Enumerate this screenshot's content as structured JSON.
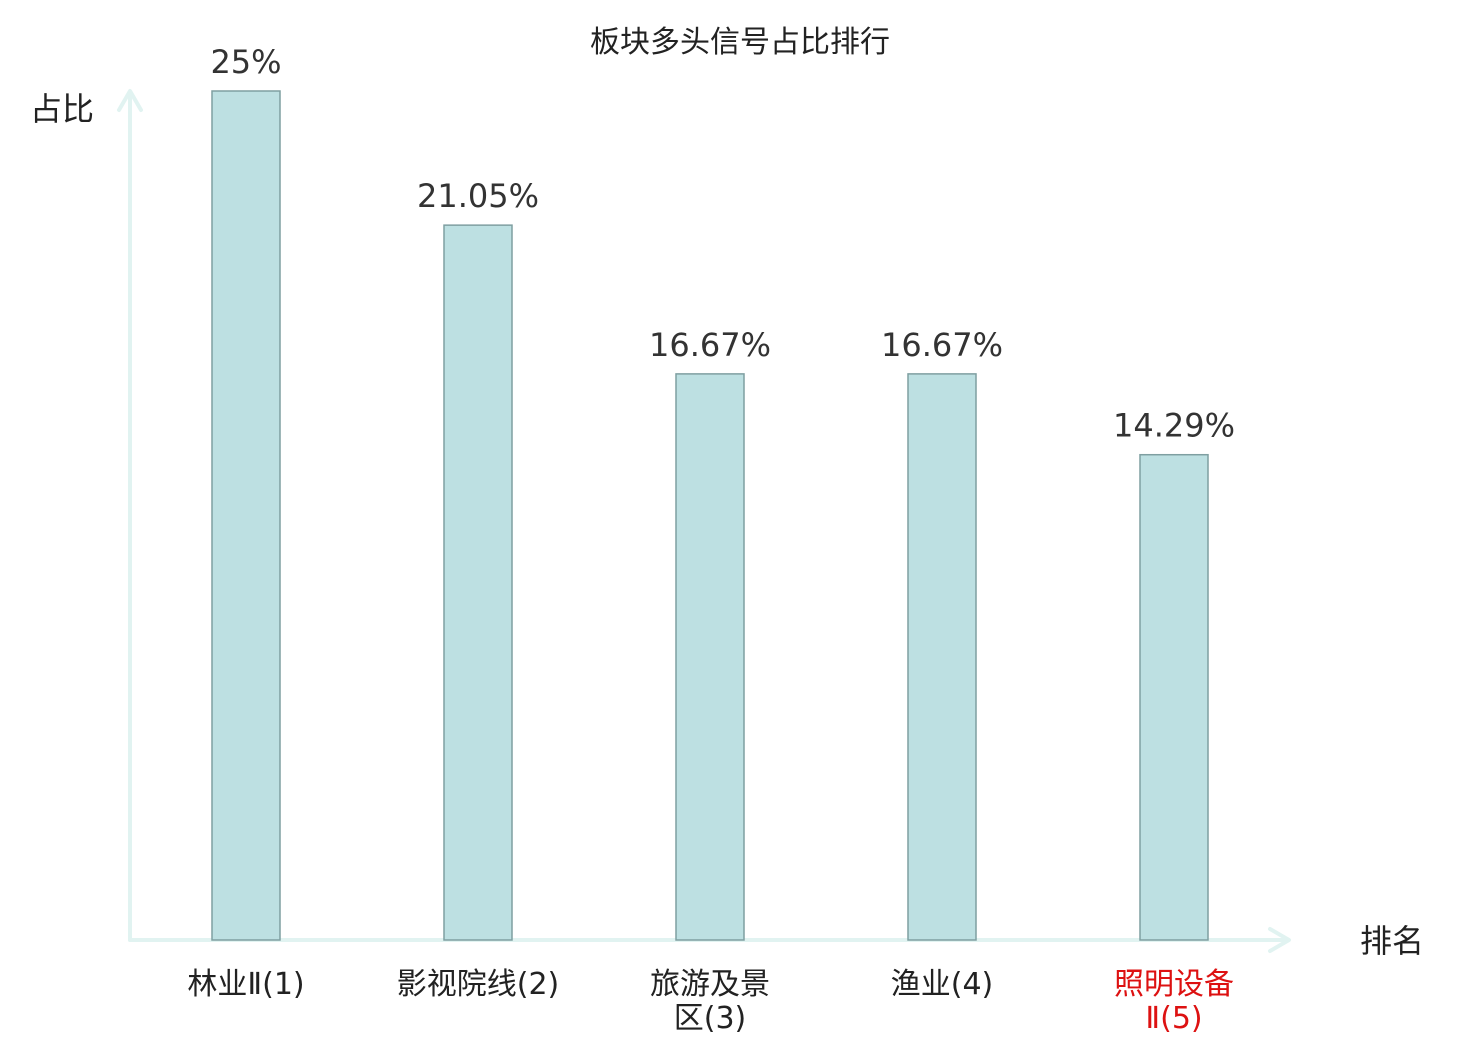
{
  "chart_data": {
    "type": "bar",
    "title": "板块多头信号占比排行",
    "ylabel": "占比",
    "xlabel": "排名",
    "ylim": [
      0,
      25
    ],
    "grid": false,
    "value_suffix": "%",
    "categories": [
      {
        "lines": [
          "林业Ⅱ(1)"
        ],
        "highlight": false
      },
      {
        "lines": [
          "影视院线(2)"
        ],
        "highlight": false
      },
      {
        "lines": [
          "旅游及景",
          "区(3)"
        ],
        "highlight": false
      },
      {
        "lines": [
          "渔业(4)"
        ],
        "highlight": false
      },
      {
        "lines": [
          "照明设备",
          "Ⅱ(5)"
        ],
        "highlight": true
      }
    ],
    "values": [
      25,
      21.05,
      16.67,
      16.67,
      14.29
    ],
    "value_labels": [
      "25%",
      "21.05%",
      "16.67%",
      "16.67%",
      "14.29%"
    ],
    "colors": {
      "bar_fill": "#bde0e2",
      "bar_stroke": "#7f9fa1",
      "axis": "#e1f3f1",
      "highlight_text": "#dd1111",
      "text": "#222222"
    }
  }
}
